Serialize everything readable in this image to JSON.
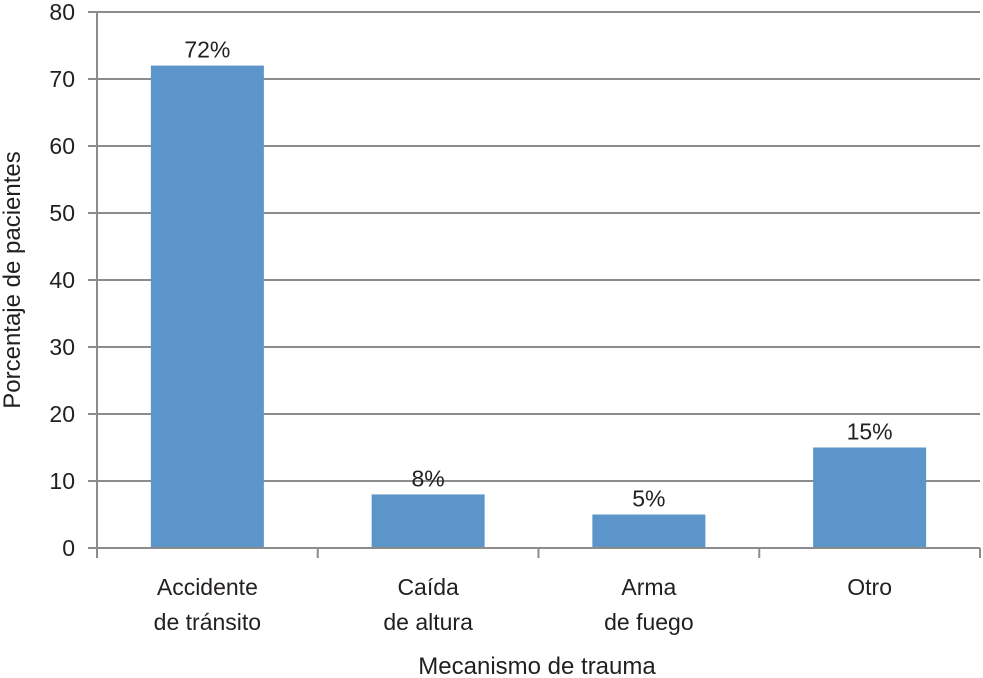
{
  "chart_data": {
    "type": "bar",
    "categories": [
      [
        "Accidente",
        "de tránsito"
      ],
      [
        "Caída",
        "de altura"
      ],
      [
        "Arma",
        "de fuego"
      ],
      [
        "Otro"
      ]
    ],
    "values": [
      72,
      8,
      5,
      15
    ],
    "data_labels": [
      "72%",
      "8%",
      "5%",
      "15%"
    ],
    "title": "",
    "xlabel": "Mecanismo de trauma",
    "ylabel": "Porcentaje de pacientes",
    "ylim": [
      0,
      80
    ],
    "yticks": [
      0,
      10,
      20,
      30,
      40,
      50,
      60,
      70,
      80
    ],
    "grid": true,
    "legend": "none",
    "colors": {
      "bar": "#5b95c9",
      "grid": "#8c8c8c",
      "axis": "#8c8c8c",
      "text": "#231f20"
    }
  }
}
